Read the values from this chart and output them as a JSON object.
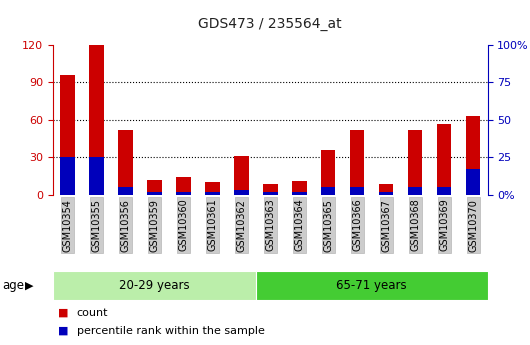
{
  "title": "GDS473 / 235564_at",
  "samples": [
    "GSM10354",
    "GSM10355",
    "GSM10356",
    "GSM10359",
    "GSM10360",
    "GSM10361",
    "GSM10362",
    "GSM10363",
    "GSM10364",
    "GSM10365",
    "GSM10366",
    "GSM10367",
    "GSM10368",
    "GSM10369",
    "GSM10370"
  ],
  "count_values": [
    96,
    120,
    52,
    12,
    14,
    10,
    31,
    9,
    11,
    36,
    52,
    9,
    52,
    57,
    63
  ],
  "percentile_values": [
    25,
    25,
    5,
    2,
    2,
    2,
    3,
    2,
    2,
    5,
    5,
    2,
    5,
    5,
    17
  ],
  "group1_label": "20-29 years",
  "group1_count": 7,
  "group2_label": "65-71 years",
  "group2_count": 8,
  "age_label": "age",
  "legend_count": "count",
  "legend_percentile": "percentile rank within the sample",
  "ylim_left": [
    0,
    120
  ],
  "ylim_right": [
    0,
    100
  ],
  "yticks_left": [
    0,
    30,
    60,
    90,
    120
  ],
  "yticks_right": [
    0,
    25,
    50,
    75,
    100
  ],
  "ytick_labels_left": [
    "0",
    "30",
    "60",
    "90",
    "120"
  ],
  "ytick_labels_right": [
    "0%",
    "25",
    "50",
    "75",
    "100%"
  ],
  "bar_color_red": "#cc0000",
  "bar_color_blue": "#0000bb",
  "group1_bg": "#bbeeaa",
  "group2_bg": "#44cc33",
  "bar_width": 0.5
}
